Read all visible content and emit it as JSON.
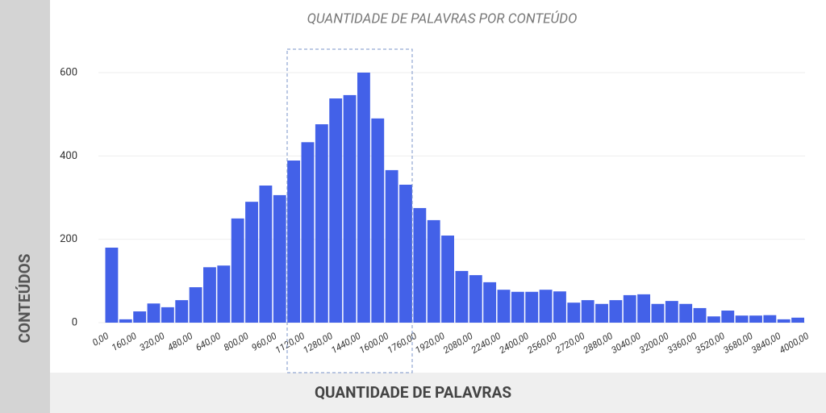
{
  "chart_data": {
    "type": "histogram",
    "title": "QUANTIDADE DE PALAVRAS POR CONTEÚDO",
    "xlabel": "QUANTIDADE DE PALAVRAS",
    "ylabel": "CONTEÚDOS",
    "color": "#4361e8",
    "bins": [
      0,
      80,
      160,
      240,
      320,
      400,
      480,
      560,
      640,
      720,
      800,
      880,
      960,
      1040,
      1120,
      1200,
      1280,
      1360,
      1440,
      1520,
      1600,
      1680,
      1760,
      1840,
      1920,
      2000,
      2080,
      2160,
      2240,
      2320,
      2400,
      2480,
      2560,
      2640,
      2720,
      2800,
      2880,
      2960,
      3040,
      3120,
      3200,
      3280,
      3360,
      3440,
      3520,
      3600,
      3680,
      3760,
      3840,
      3920,
      4000
    ],
    "values": [
      180,
      8,
      27,
      46,
      37,
      54,
      85,
      133,
      137,
      250,
      290,
      329,
      306,
      389,
      433,
      476,
      538,
      546,
      600,
      490,
      366,
      331,
      275,
      246,
      209,
      124,
      114,
      97,
      79,
      74,
      74,
      79,
      75,
      48,
      54,
      45,
      54,
      66,
      68,
      45,
      52,
      45,
      35,
      15,
      29,
      17,
      17,
      18,
      8,
      12
    ],
    "xlim": [
      0,
      4000
    ],
    "ylim": [
      0,
      600
    ],
    "xticks": [
      {
        "value": 0,
        "label": "0,00"
      },
      {
        "value": 160,
        "label": "160,00"
      },
      {
        "value": 320,
        "label": "320,00"
      },
      {
        "value": 480,
        "label": "480,00"
      },
      {
        "value": 640,
        "label": "640,00"
      },
      {
        "value": 800,
        "label": "800,00"
      },
      {
        "value": 960,
        "label": "960,00"
      },
      {
        "value": 1120,
        "label": "1120,00"
      },
      {
        "value": 1280,
        "label": "1280,00"
      },
      {
        "value": 1440,
        "label": "1440,00"
      },
      {
        "value": 1600,
        "label": "1600,00"
      },
      {
        "value": 1760,
        "label": "1760,00"
      },
      {
        "value": 1920,
        "label": "1920,00"
      },
      {
        "value": 2080,
        "label": "2080,00"
      },
      {
        "value": 2240,
        "label": "2240,00"
      },
      {
        "value": 2400,
        "label": "2400,00"
      },
      {
        "value": 2560,
        "label": "2560,00"
      },
      {
        "value": 2720,
        "label": "2720,00"
      },
      {
        "value": 2880,
        "label": "2880,00"
      },
      {
        "value": 3040,
        "label": "3040,00"
      },
      {
        "value": 3200,
        "label": "3200,00"
      },
      {
        "value": 3360,
        "label": "3360,00"
      },
      {
        "value": 3520,
        "label": "3520,00"
      },
      {
        "value": 3680,
        "label": "3680,00"
      },
      {
        "value": 3840,
        "label": "3840,00"
      },
      {
        "value": 4000,
        "label": "4000,00"
      }
    ],
    "yticks": [
      0,
      200,
      400,
      600
    ],
    "grid": true
  }
}
